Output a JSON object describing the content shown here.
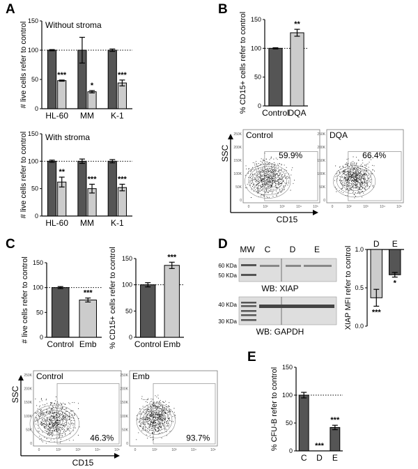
{
  "panels": {
    "A": "A",
    "B": "B",
    "C": "C",
    "D": "D",
    "E": "E"
  },
  "colors": {
    "dark": "#555555",
    "light": "#cccccc",
    "blot_bg": "#dedede"
  },
  "chart_data": [
    {
      "id": "A-top",
      "type": "bar",
      "title": "Without stroma",
      "ylabel": "# live cells refer to control",
      "categories": [
        "HL-60",
        "MM",
        "K-1"
      ],
      "ylim": [
        0,
        150
      ],
      "yticks": [
        0,
        50,
        100,
        150
      ],
      "reference_line": 100,
      "series": [
        {
          "values": [
            100,
            100,
            100
          ],
          "errors": [
            1,
            22,
            2
          ],
          "color": "dark"
        },
        {
          "values": [
            48,
            29,
            44
          ],
          "errors": [
            1,
            2,
            5
          ],
          "color": "light"
        }
      ],
      "annotations": [
        [
          "",
          "***"
        ],
        [
          "",
          "*"
        ],
        [
          "",
          "***"
        ]
      ]
    },
    {
      "id": "A-bottom",
      "type": "bar",
      "title": "With stroma",
      "ylabel": "# live cells refer to control",
      "categories": [
        "HL-60",
        "MM",
        "K-1"
      ],
      "ylim": [
        0,
        150
      ],
      "yticks": [
        0,
        50,
        100,
        150
      ],
      "reference_line": 100,
      "series": [
        {
          "values": [
            100,
            100,
            100
          ],
          "errors": [
            2,
            4,
            3
          ],
          "color": "dark"
        },
        {
          "values": [
            62,
            50,
            52
          ],
          "errors": [
            9,
            8,
            6
          ],
          "color": "light"
        }
      ],
      "annotations": [
        [
          "",
          "**"
        ],
        [
          "",
          "***"
        ],
        [
          "",
          "***"
        ]
      ]
    },
    {
      "id": "B",
      "type": "bar",
      "ylabel": "% CD15+ cells refer to control",
      "categories": [
        "Control",
        "DQA"
      ],
      "ylim": [
        0,
        150
      ],
      "yticks": [
        0,
        50,
        100,
        150
      ],
      "reference_line": 100,
      "values": [
        100,
        127
      ],
      "errors": [
        1,
        6
      ],
      "colors": [
        "dark",
        "light"
      ],
      "annotations": [
        "",
        "**"
      ]
    },
    {
      "id": "C-left",
      "type": "bar",
      "ylabel": "# live cells refer to control",
      "categories": [
        "Control",
        "Emb"
      ],
      "ylim": [
        0,
        150
      ],
      "yticks": [
        0,
        50,
        100,
        150
      ],
      "reference_line": 100,
      "values": [
        100,
        75
      ],
      "errors": [
        2,
        4
      ],
      "colors": [
        "dark",
        "light"
      ],
      "annotations": [
        "",
        "***"
      ]
    },
    {
      "id": "C-right",
      "type": "bar",
      "ylabel": "% CD15+ cells refer to control",
      "categories": [
        "Control",
        "Emb"
      ],
      "ylim": [
        0,
        150
      ],
      "yticks": [
        0,
        50,
        100,
        150
      ],
      "reference_line": 100,
      "values": [
        100,
        137
      ],
      "errors": [
        4,
        6
      ],
      "colors": [
        "dark",
        "light"
      ],
      "annotations": [
        "",
        "***"
      ]
    },
    {
      "id": "D-bar",
      "type": "bar",
      "ylabel": "XIAP MFI refer to control",
      "categories": [
        "D",
        "E"
      ],
      "ylim": [
        0,
        1
      ],
      "yticks": [
        0,
        0.5,
        1
      ],
      "yticklabels": [
        "0.0",
        "0.5",
        "1.0"
      ],
      "axis_on_top": true,
      "values": [
        0.37,
        0.67
      ],
      "errors": [
        0.11,
        0.03
      ],
      "colors": [
        "light",
        "dark"
      ],
      "annotations": [
        "***",
        "*"
      ]
    },
    {
      "id": "E",
      "type": "bar",
      "ylabel": "% CFU-B refer to control",
      "categories": [
        "C",
        "D",
        "E"
      ],
      "ylim": [
        0,
        150
      ],
      "yticks": [
        0,
        50,
        100,
        150
      ],
      "reference_line": 100,
      "values": [
        100,
        0,
        42
      ],
      "errors": [
        5,
        0,
        4
      ],
      "colors": [
        "dark",
        "dark",
        "dark"
      ],
      "annotations": [
        "",
        "***",
        "***"
      ]
    },
    {
      "id": "B-flow",
      "type": "scatter",
      "xlabel": "SSC",
      "ylabel": "CD15",
      "plots": [
        {
          "label": "Control",
          "percent": "59.9%"
        },
        {
          "label": "DQA",
          "percent": "66.4%"
        }
      ],
      "ytick_labels": [
        "250K",
        "200K",
        "150K",
        "100K",
        "50K",
        "0"
      ],
      "xtick_labels": [
        "0",
        "10²",
        "10³",
        "10⁴",
        "10⁵"
      ]
    },
    {
      "id": "C-flow",
      "type": "scatter",
      "xlabel": "SSC",
      "ylabel": "CD15",
      "plots": [
        {
          "label": "Control",
          "percent": "46.3%"
        },
        {
          "label": "Emb",
          "percent": "93.7%"
        }
      ],
      "ytick_labels": [
        "250K",
        "200K",
        "150K",
        "100K",
        "50K",
        "0"
      ],
      "xtick_labels": [
        "0",
        "10²",
        "10³",
        "10⁴",
        "10⁵"
      ]
    }
  ],
  "blot": {
    "lanes": [
      "MW",
      "C",
      "D",
      "E"
    ],
    "upper_markers": [
      "60 KDa",
      "50 KDa"
    ],
    "lower_markers": [
      "40 KDa",
      "30 KDa"
    ],
    "upper_label": "WB: XIAP",
    "lower_label": "WB: GAPDH"
  }
}
